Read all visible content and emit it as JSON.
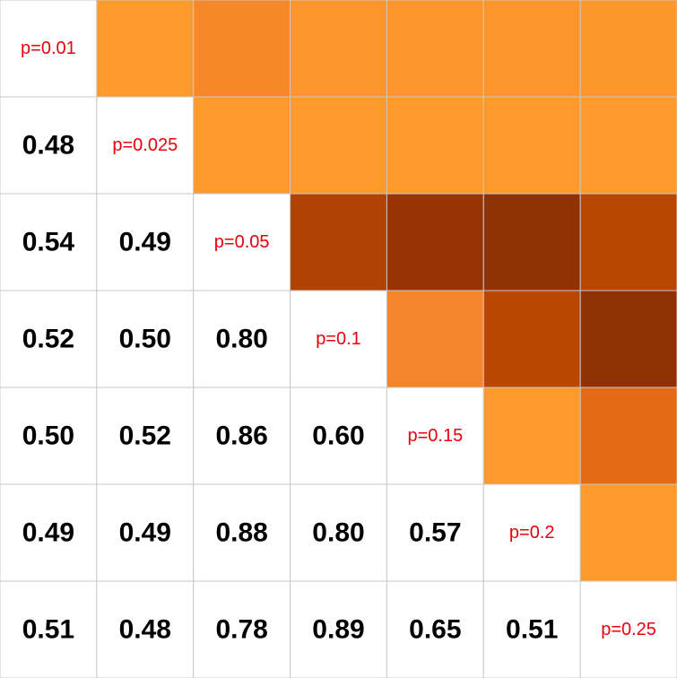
{
  "chart_data": {
    "type": "heatmap",
    "title": "",
    "categories": [
      "p=0.01",
      "p=0.025",
      "p=0.05",
      "p=0.1",
      "p=0.15",
      "p=0.2",
      "p=0.25"
    ],
    "lower_triangle_values": [
      [
        null,
        null,
        null,
        null,
        null,
        null,
        null
      ],
      [
        0.48,
        null,
        null,
        null,
        null,
        null,
        null
      ],
      [
        0.54,
        0.49,
        null,
        null,
        null,
        null,
        null
      ],
      [
        0.52,
        0.5,
        0.8,
        null,
        null,
        null,
        null
      ],
      [
        0.5,
        0.52,
        0.86,
        0.6,
        null,
        null,
        null
      ],
      [
        0.49,
        0.49,
        0.88,
        0.8,
        0.57,
        null,
        null
      ],
      [
        0.51,
        0.48,
        0.78,
        0.89,
        0.65,
        0.51,
        null
      ]
    ],
    "upper_triangle_colors": [
      [
        null,
        "#fc9a2c",
        "#f7882a",
        "#fc962c",
        "#fc962c",
        "#fc962c",
        "#fc972c"
      ],
      [
        null,
        null,
        "#fc9a2c",
        "#fc9a2c",
        "#fc9a2c",
        "#fc9a2c",
        "#fc9a2c"
      ],
      [
        null,
        null,
        null,
        "#b14302",
        "#973403",
        "#8f3103",
        "#b84603"
      ],
      [
        null,
        null,
        null,
        null,
        "#f4852a",
        "#b94602",
        "#8f3103"
      ],
      [
        null,
        null,
        null,
        null,
        null,
        "#fc9a2c",
        "#e46a16"
      ],
      [
        null,
        null,
        null,
        null,
        null,
        null,
        "#fc9a2c"
      ],
      [
        null,
        null,
        null,
        null,
        null,
        null,
        null
      ]
    ],
    "colors": {
      "diagonal_text": "#e8000b",
      "value_text": "#000000",
      "grid_line": "#c8c8c8",
      "background": "#ffffff"
    }
  }
}
